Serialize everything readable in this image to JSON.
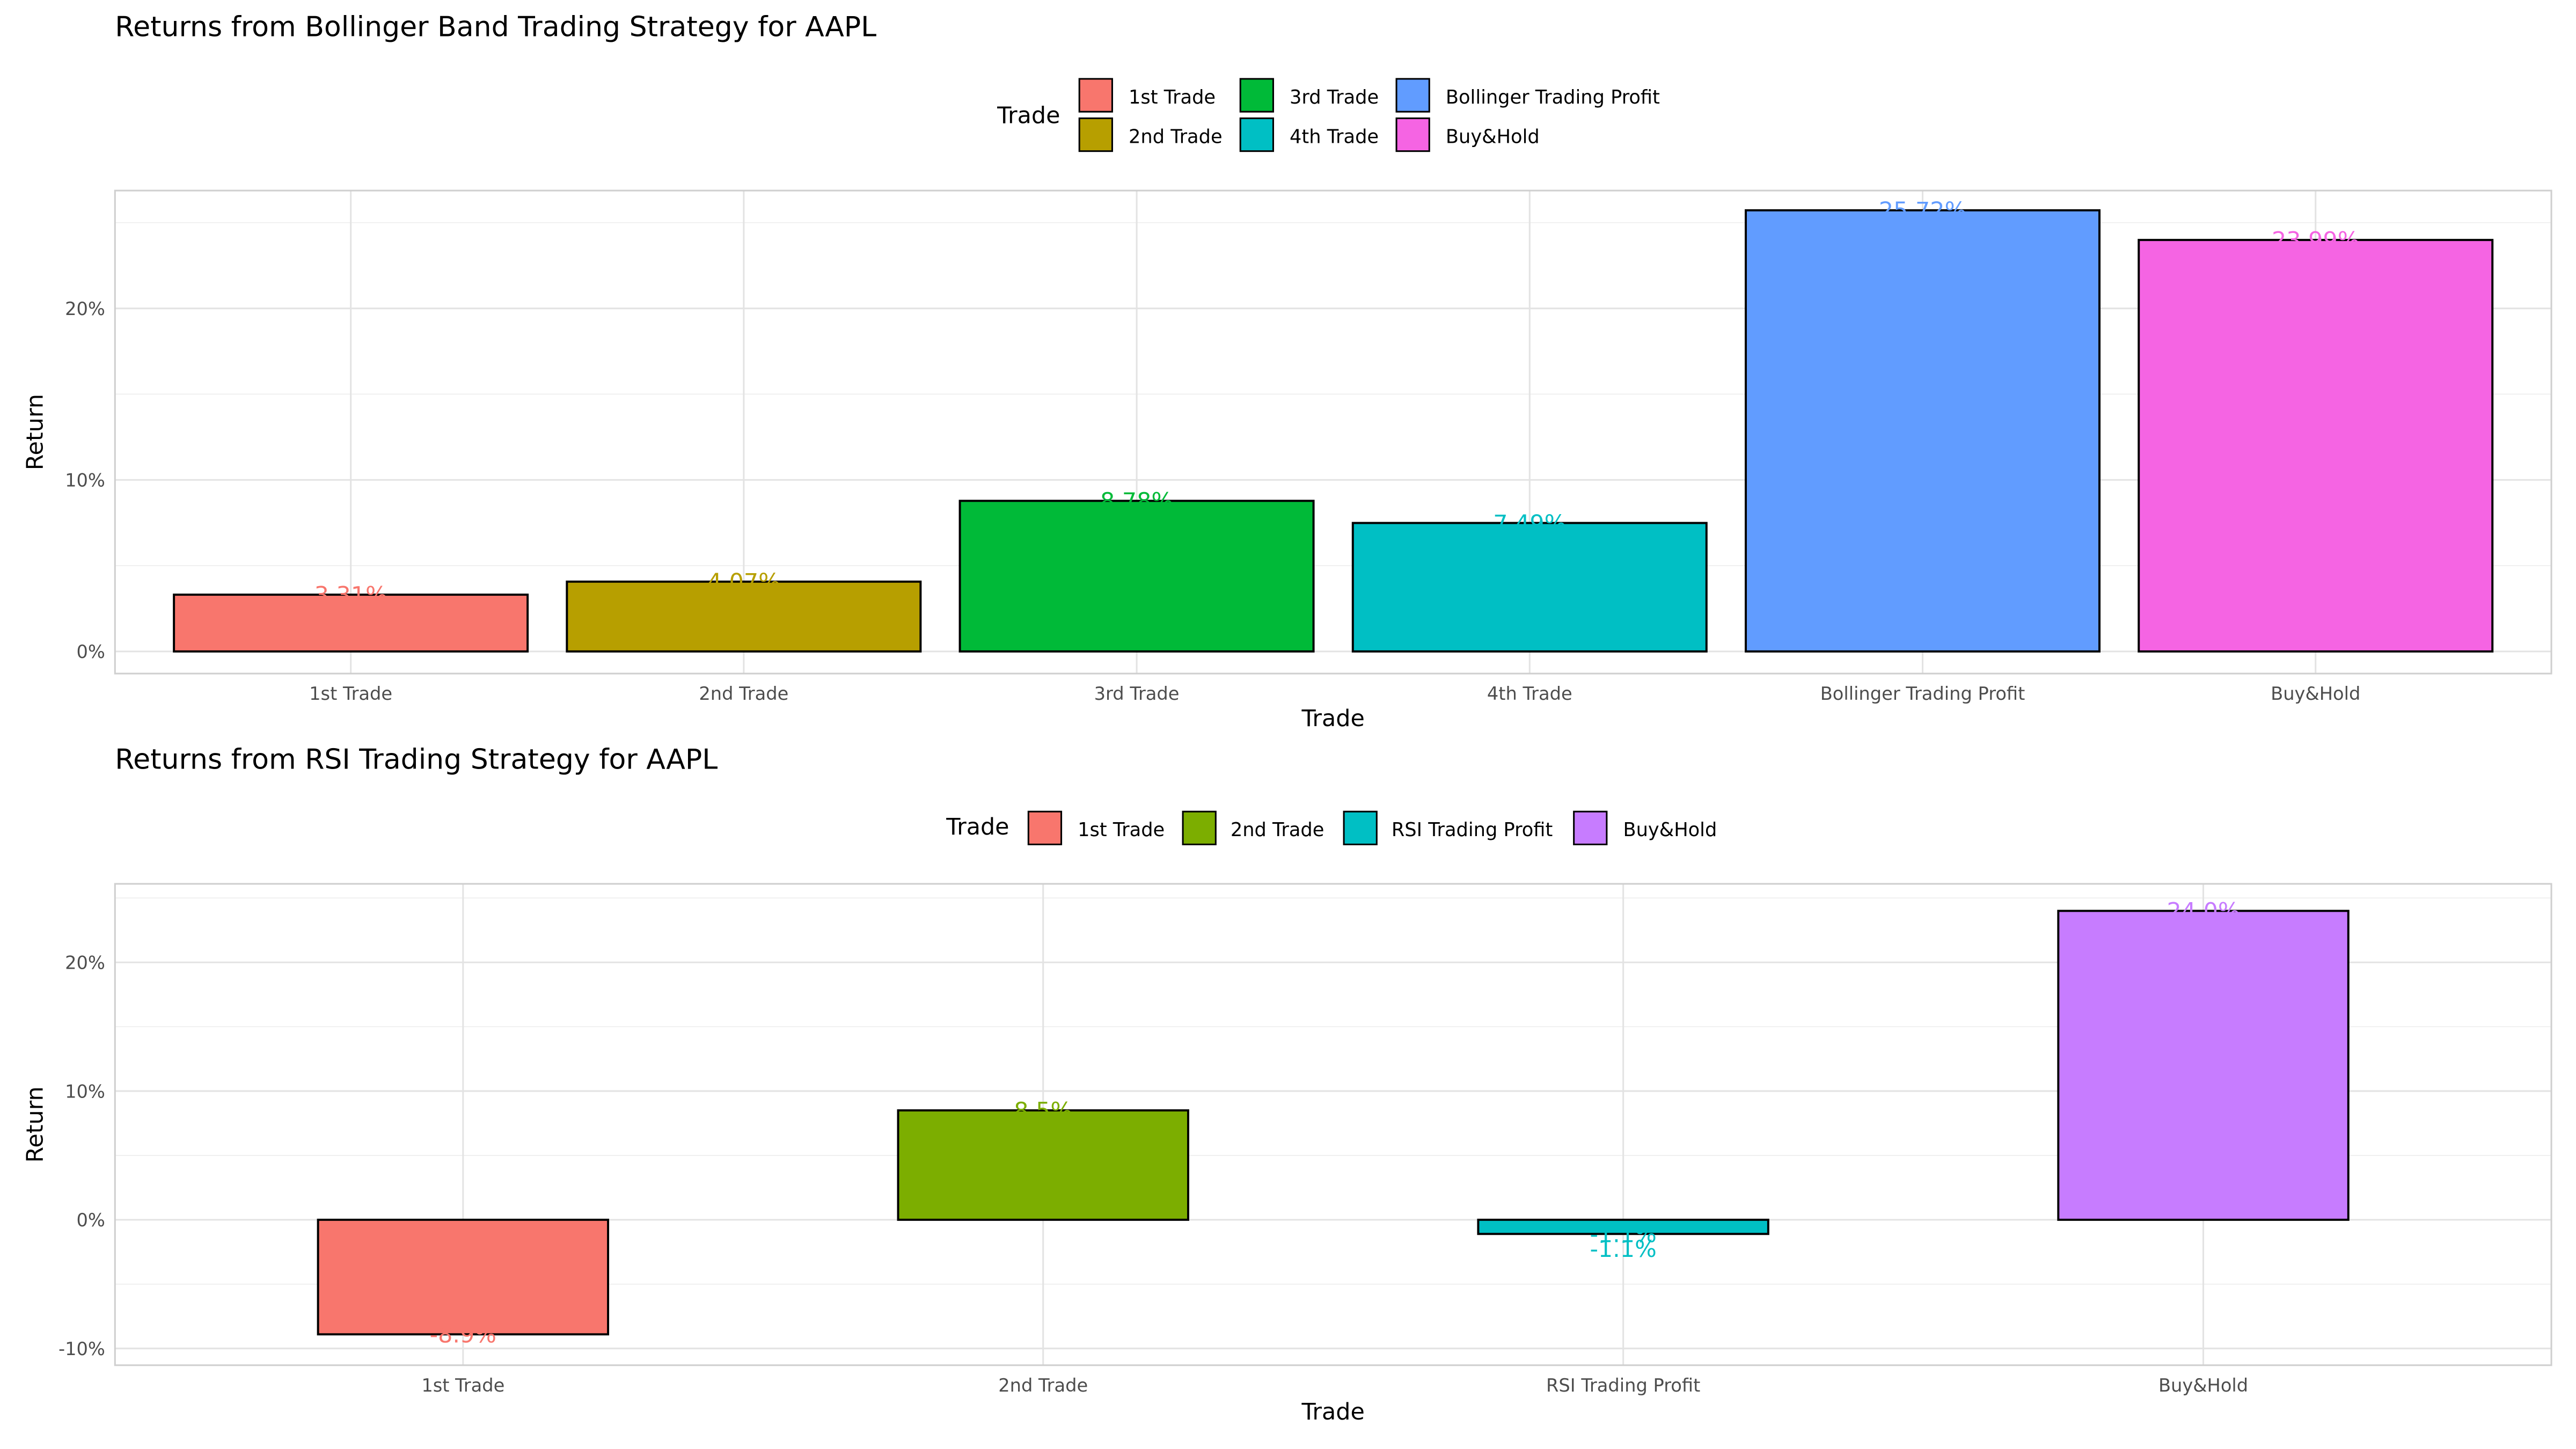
{
  "chart_data": [
    {
      "type": "bar",
      "title": "Returns from Bollinger Band Trading Strategy for AAPL",
      "xlabel": "Trade",
      "ylabel": "Return",
      "legend_title": "Trade",
      "legend_position": "top",
      "legend_rows": 2,
      "grid": true,
      "categories": [
        "1st Trade",
        "2nd Trade",
        "3rd Trade",
        "4th Trade",
        "Bollinger Trading Profit",
        "Buy&Hold"
      ],
      "values": [
        3.31,
        4.07,
        8.78,
        7.49,
        25.72,
        23.99
      ],
      "labels": [
        "3.31%",
        "4.07%",
        "8.78%",
        "7.49%",
        "25.72%",
        "23.99%"
      ],
      "colors": [
        "#F8766D",
        "#B79F00",
        "#00BA38",
        "#00BFC4",
        "#619CFF",
        "#F564E3"
      ],
      "ylim": [
        -1.29,
        26.87
      ],
      "yticks": [
        0,
        10,
        20
      ],
      "ytick_labels": [
        "0%",
        "10%",
        "20%"
      ]
    },
    {
      "type": "bar",
      "title": "Returns from RSI Trading Strategy for AAPL",
      "xlabel": "Trade",
      "ylabel": "Return",
      "legend_title": "Trade",
      "legend_position": "top",
      "legend_rows": 1,
      "grid": true,
      "categories": [
        "1st Trade",
        "2nd Trade",
        "RSI Trading Profit",
        "Buy&Hold"
      ],
      "values": [
        -8.9,
        8.5,
        -1.1,
        24.0
      ],
      "labels": [
        "-8.9%",
        "8.5%",
        "-1.1%",
        "24.0%"
      ],
      "extra_labels": [
        {
          "category": "RSI Trading Profit",
          "value": -1.1,
          "text": "-1.1%"
        }
      ],
      "colors": [
        "#F8766D",
        "#7CAE00",
        "#00BFC4",
        "#C77CFF"
      ],
      "ylim": [
        -11.3,
        26.1
      ],
      "yticks": [
        -10,
        0,
        10,
        20
      ],
      "ytick_labels": [
        "-10%",
        "0%",
        "10%",
        "20%"
      ]
    }
  ]
}
